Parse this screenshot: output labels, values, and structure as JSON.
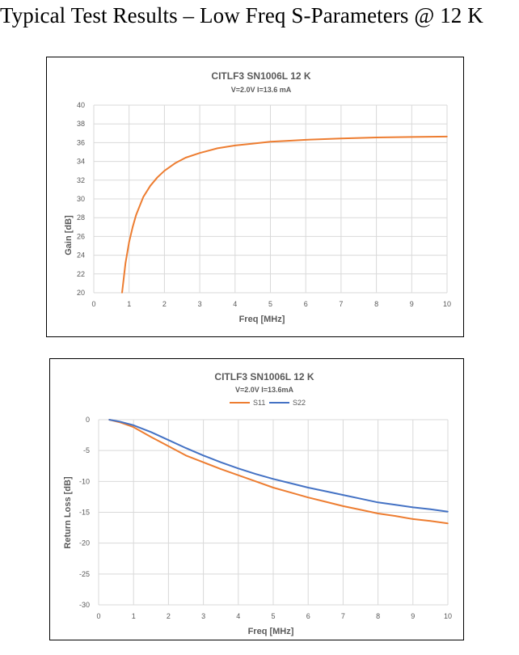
{
  "page": {
    "title": "Typical Test Results – Low Freq S-Parameters @ 12 K"
  },
  "colors": {
    "s11": "#ED7D31",
    "s22": "#4472C4",
    "grid": "#D9D9D9",
    "text": "#595959"
  },
  "chart_data": [
    {
      "type": "line",
      "title": "CITLF3 SN1006L 12 K",
      "subtitle": "V=2.0V I=13.6 mA",
      "xlabel": "Freq [MHz]",
      "ylabel": "Gain [dB]",
      "xlim": [
        0,
        10
      ],
      "ylim": [
        20,
        40
      ],
      "xticks": [
        0,
        1,
        2,
        3,
        4,
        5,
        6,
        7,
        8,
        9,
        10
      ],
      "yticks": [
        20,
        22,
        24,
        26,
        28,
        30,
        32,
        34,
        36,
        38,
        40
      ],
      "grid": true,
      "legend": "none",
      "series": [
        {
          "name": "Gain",
          "color": "#ED7D31",
          "x": [
            0.8,
            0.9,
            1.0,
            1.1,
            1.2,
            1.4,
            1.6,
            1.8,
            2.0,
            2.3,
            2.6,
            3.0,
            3.5,
            4.0,
            4.5,
            5.0,
            5.5,
            6.0,
            7.0,
            8.0,
            9.0,
            10.0
          ],
          "y": [
            20.0,
            23.2,
            25.4,
            27.0,
            28.3,
            30.2,
            31.4,
            32.3,
            33.0,
            33.8,
            34.4,
            34.9,
            35.4,
            35.7,
            35.9,
            36.1,
            36.2,
            36.3,
            36.45,
            36.55,
            36.6,
            36.65
          ]
        }
      ]
    },
    {
      "type": "line",
      "title": "CITLF3 SN1006L 12 K",
      "subtitle": "V=2.0V I=13.6mA",
      "xlabel": "Freq [MHz]",
      "ylabel": "Return Loss [dB]",
      "xlim": [
        0,
        10
      ],
      "ylim": [
        -30,
        0
      ],
      "xticks": [
        0,
        1,
        2,
        3,
        4,
        5,
        6,
        7,
        8,
        9,
        10
      ],
      "yticks": [
        0,
        -5,
        -10,
        -15,
        -20,
        -25,
        -30
      ],
      "grid": true,
      "legend": "top-center",
      "series": [
        {
          "name": "S11",
          "color": "#ED7D31",
          "x": [
            0.3,
            0.6,
            1.0,
            1.5,
            2.0,
            2.5,
            3.0,
            3.5,
            4.0,
            4.5,
            5.0,
            5.5,
            6.0,
            6.5,
            7.0,
            7.5,
            8.0,
            8.5,
            9.0,
            9.5,
            10.0
          ],
          "y": [
            0.0,
            -0.4,
            -1.2,
            -2.8,
            -4.3,
            -5.8,
            -6.9,
            -8.0,
            -9.0,
            -10.0,
            -11.0,
            -11.8,
            -12.6,
            -13.3,
            -14.0,
            -14.6,
            -15.2,
            -15.6,
            -16.1,
            -16.4,
            -16.8
          ]
        },
        {
          "name": "S22",
          "color": "#4472C4",
          "x": [
            0.3,
            0.6,
            1.0,
            1.5,
            2.0,
            2.5,
            3.0,
            3.5,
            4.0,
            4.5,
            5.0,
            5.5,
            6.0,
            6.5,
            7.0,
            7.5,
            8.0,
            8.5,
            9.0,
            9.5,
            10.0
          ],
          "y": [
            0.0,
            -0.3,
            -0.9,
            -2.0,
            -3.3,
            -4.6,
            -5.8,
            -6.9,
            -7.9,
            -8.8,
            -9.6,
            -10.3,
            -11.0,
            -11.6,
            -12.2,
            -12.8,
            -13.4,
            -13.8,
            -14.2,
            -14.5,
            -14.9
          ]
        }
      ]
    }
  ]
}
